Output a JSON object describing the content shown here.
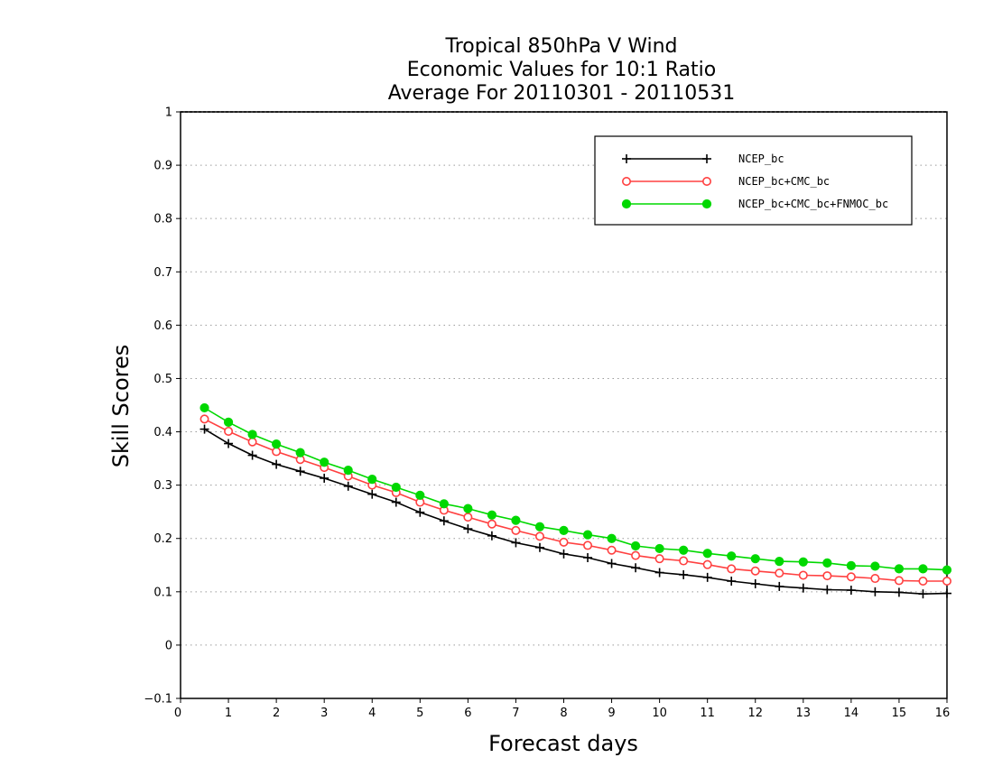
{
  "chart_data": {
    "type": "line",
    "title_lines": [
      "Tropical 850hPa V Wind",
      "Economic Values for 10:1 Ratio",
      "Average For 20110301 - 20110531"
    ],
    "xlabel": "Forecast days",
    "ylabel": "Skill Scores",
    "xlim": [
      0,
      16
    ],
    "ylim": [
      -0.1,
      1
    ],
    "xticks": [
      0,
      1,
      2,
      3,
      4,
      5,
      6,
      7,
      8,
      9,
      10,
      11,
      12,
      13,
      14,
      15,
      16
    ],
    "yticks": [
      -0.1,
      0,
      0.1,
      0.2,
      0.3,
      0.4,
      0.5,
      0.6,
      0.7,
      0.8,
      0.9,
      1
    ],
    "ytick_labels": [
      "−0.1",
      "0",
      "0.1",
      "0.2",
      "0.3",
      "0.4",
      "0.5",
      "0.6",
      "0.7",
      "0.8",
      "0.9",
      "1"
    ],
    "grid": "horizontal dotted",
    "legend_position": "top-right",
    "x": [
      0.5,
      1,
      1.5,
      2,
      2.5,
      3,
      3.5,
      4,
      4.5,
      5,
      5.5,
      6,
      6.5,
      7,
      7.5,
      8,
      8.5,
      9,
      9.5,
      10,
      10.5,
      11,
      11.5,
      12,
      12.5,
      13,
      13.5,
      14,
      14.5,
      15,
      15.5,
      16
    ],
    "series": [
      {
        "name": "NCEP_bc",
        "color": "#000000",
        "marker": "plus",
        "values": [
          0.405,
          0.378,
          0.356,
          0.339,
          0.326,
          0.313,
          0.298,
          0.283,
          0.268,
          0.249,
          0.233,
          0.218,
          0.205,
          0.192,
          0.183,
          0.171,
          0.164,
          0.153,
          0.145,
          0.136,
          0.132,
          0.127,
          0.12,
          0.115,
          0.11,
          0.107,
          0.104,
          0.103,
          0.1,
          0.099,
          0.096,
          0.097
        ]
      },
      {
        "name": "NCEP_bc+CMC_bc",
        "color": "#ff4040",
        "marker": "open-circle",
        "values": [
          0.424,
          0.401,
          0.381,
          0.363,
          0.348,
          0.333,
          0.317,
          0.3,
          0.286,
          0.268,
          0.253,
          0.24,
          0.227,
          0.215,
          0.204,
          0.193,
          0.187,
          0.178,
          0.168,
          0.162,
          0.158,
          0.151,
          0.143,
          0.139,
          0.135,
          0.131,
          0.13,
          0.128,
          0.125,
          0.121,
          0.12,
          0.12
        ]
      },
      {
        "name": "NCEP_bc+CMC_bc+FNMOC_bc",
        "color": "#00d800",
        "marker": "filled-circle",
        "values": [
          0.445,
          0.418,
          0.395,
          0.377,
          0.361,
          0.343,
          0.328,
          0.311,
          0.296,
          0.281,
          0.265,
          0.256,
          0.244,
          0.234,
          0.222,
          0.215,
          0.207,
          0.2,
          0.186,
          0.181,
          0.178,
          0.172,
          0.167,
          0.162,
          0.157,
          0.156,
          0.154,
          0.149,
          0.148,
          0.143,
          0.143,
          0.141
        ]
      }
    ]
  }
}
